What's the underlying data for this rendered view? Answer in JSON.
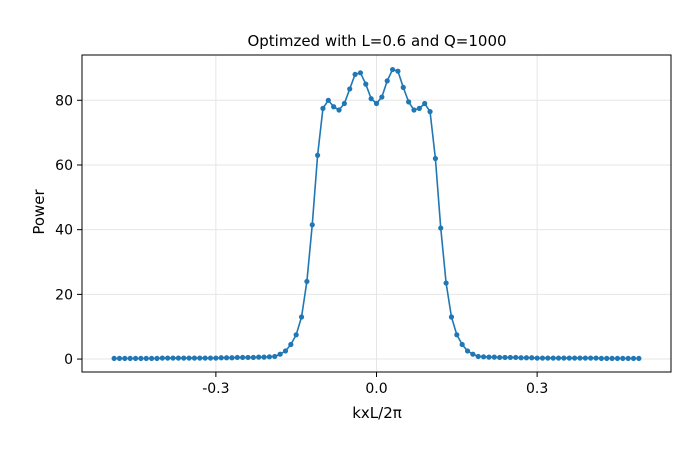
{
  "chart_data": {
    "type": "line",
    "title": "Optimzed with L=0.6 and Q=1000",
    "xlabel": "kxL/2π",
    "ylabel": "Power",
    "xlim": [
      -0.55,
      0.55
    ],
    "ylim": [
      -4,
      94
    ],
    "xticks": [
      -0.3,
      0.0,
      0.3
    ],
    "xtick_labels": [
      "-0.3",
      "0.0",
      "0.3"
    ],
    "yticks": [
      0,
      20,
      40,
      60,
      80
    ],
    "ytick_labels": [
      "0",
      "20",
      "40",
      "60",
      "80"
    ],
    "grid": true,
    "legend": "none",
    "colors": {
      "series": "#1f77b4"
    },
    "series": [
      {
        "markers": true,
        "x": [
          -0.49,
          -0.48,
          -0.47,
          -0.46,
          -0.45,
          -0.44,
          -0.43,
          -0.42,
          -0.41,
          -0.4,
          -0.39,
          -0.38,
          -0.37,
          -0.36,
          -0.35,
          -0.34,
          -0.33,
          -0.32,
          -0.31,
          -0.3,
          -0.29,
          -0.28,
          -0.27,
          -0.26,
          -0.25,
          -0.24,
          -0.23,
          -0.22,
          -0.21,
          -0.2,
          -0.19,
          -0.18,
          -0.17,
          -0.16,
          -0.15,
          -0.14,
          -0.13,
          -0.12,
          -0.11,
          -0.1,
          -0.09,
          -0.08,
          -0.07,
          -0.06,
          -0.05,
          -0.04,
          -0.03,
          -0.02,
          -0.01,
          0.0,
          0.01,
          0.02,
          0.03,
          0.04,
          0.05,
          0.06,
          0.07,
          0.08,
          0.09,
          0.1,
          0.11,
          0.12,
          0.13,
          0.14,
          0.15,
          0.16,
          0.17,
          0.18,
          0.19,
          0.2,
          0.21,
          0.22,
          0.23,
          0.24,
          0.25,
          0.26,
          0.27,
          0.28,
          0.29,
          0.3,
          0.31,
          0.32,
          0.33,
          0.34,
          0.35,
          0.36,
          0.37,
          0.38,
          0.39,
          0.4,
          0.41,
          0.42,
          0.43,
          0.44,
          0.45,
          0.46,
          0.47,
          0.48,
          0.49
        ],
        "y": [
          0.2,
          0.2,
          0.2,
          0.2,
          0.2,
          0.2,
          0.2,
          0.2,
          0.2,
          0.3,
          0.3,
          0.3,
          0.3,
          0.3,
          0.3,
          0.3,
          0.3,
          0.3,
          0.3,
          0.3,
          0.4,
          0.4,
          0.4,
          0.5,
          0.5,
          0.5,
          0.5,
          0.6,
          0.6,
          0.7,
          0.8,
          1.5,
          2.5,
          4.5,
          7.5,
          13,
          24,
          41.5,
          63,
          77.5,
          80,
          78,
          77,
          79,
          83.5,
          88,
          88.5,
          85,
          80.5,
          79,
          81,
          86,
          89.5,
          89,
          84,
          79.5,
          77,
          77.5,
          79,
          76.5,
          62,
          40.5,
          23.5,
          13,
          7.5,
          4.5,
          2.5,
          1.5,
          0.8,
          0.7,
          0.6,
          0.6,
          0.5,
          0.5,
          0.5,
          0.5,
          0.4,
          0.4,
          0.4,
          0.3,
          0.3,
          0.3,
          0.3,
          0.3,
          0.3,
          0.3,
          0.3,
          0.3,
          0.3,
          0.3,
          0.3,
          0.2,
          0.2,
          0.2,
          0.2,
          0.2,
          0.2,
          0.2,
          0.2
        ]
      }
    ]
  }
}
